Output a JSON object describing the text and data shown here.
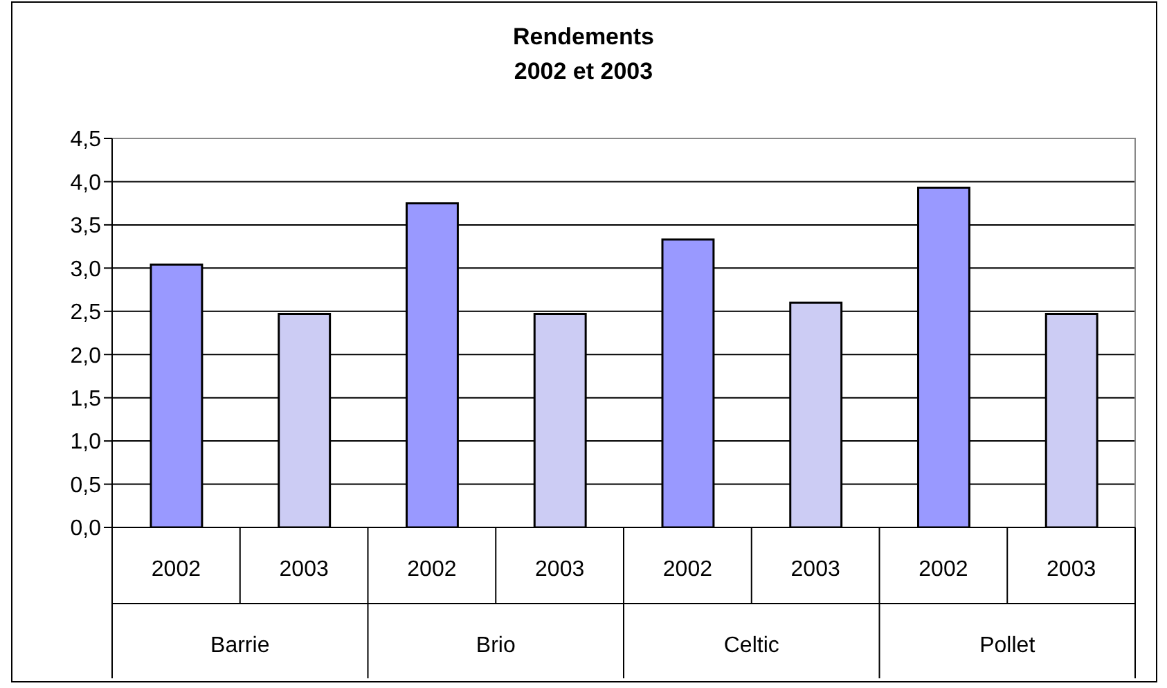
{
  "chart_data": {
    "type": "bar",
    "title": "Rendements",
    "subtitle": "2002 et 2003",
    "categories": [
      "2002",
      "2003",
      "2002",
      "2003",
      "2002",
      "2003",
      "2002",
      "2003"
    ],
    "values": [
      3.04,
      2.47,
      3.75,
      2.47,
      3.33,
      2.6,
      3.93,
      2.47
    ],
    "colors": [
      "#9999ff",
      "#ccccf4",
      "#9999ff",
      "#ccccf4",
      "#9999ff",
      "#ccccf4",
      "#9999ff",
      "#ccccf4"
    ],
    "annotations": [
      "Barrie",
      "Brio",
      "Celtic",
      "Pollet"
    ],
    "ylim": [
      0,
      4.5
    ],
    "yticks": [
      {
        "value": 0,
        "label": "0,0"
      },
      {
        "value": 0.5,
        "label": "0,5"
      },
      {
        "value": 1,
        "label": "1,0"
      },
      {
        "value": 1.5,
        "label": "1,5"
      },
      {
        "value": 2,
        "label": "2,0"
      },
      {
        "value": 2.5,
        "label": "2,5"
      },
      {
        "value": 3,
        "label": "3,0"
      },
      {
        "value": 3.5,
        "label": "3,5"
      },
      {
        "value": 4,
        "label": "4,0"
      },
      {
        "value": 4.5,
        "label": "4,5"
      }
    ],
    "grid": "y",
    "legend": false
  }
}
